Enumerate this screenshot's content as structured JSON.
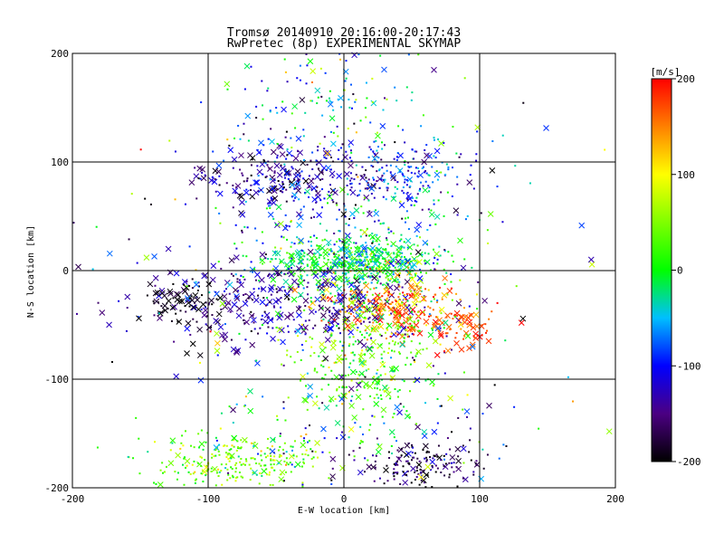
{
  "chart_data": {
    "type": "scatter",
    "title": "Tromsø 20140910 20:16:00-20:17:43",
    "subtitle": "RwPretec (8p) EXPERIMENTAL SKYMAP",
    "xlabel": "E-W location [km]",
    "ylabel": "N-S location [km]",
    "xlim": [
      -200,
      200
    ],
    "ylim": [
      -200,
      200
    ],
    "xticks": [
      "-200",
      "-100",
      "0",
      "100",
      "200"
    ],
    "yticks": [
      "200",
      "100",
      "0",
      "-100",
      "-200"
    ],
    "grid": true,
    "colorbar": {
      "label": "[m/s]",
      "range": [
        -200,
        200
      ],
      "ticks": [
        "200",
        "100",
        "0",
        "-100",
        "-200"
      ]
    },
    "seed": 20140910,
    "clusters": [
      {
        "cx": 0,
        "cy": 5,
        "sx": 35,
        "sy": 12,
        "n": 350,
        "v": 0,
        "vs": 35,
        "xfrac": 0.25
      },
      {
        "cx": 20,
        "cy": 12,
        "sx": 18,
        "sy": 10,
        "n": 200,
        "v": -20,
        "vs": 30,
        "xfrac": 0.2
      },
      {
        "cx": -40,
        "cy": 85,
        "sx": 35,
        "sy": 15,
        "n": 260,
        "v": -140,
        "vs": 40,
        "xfrac": 0.3
      },
      {
        "cx": 45,
        "cy": 90,
        "sx": 25,
        "sy": 15,
        "n": 160,
        "v": -90,
        "vs": 40,
        "xfrac": 0.1
      },
      {
        "cx": -40,
        "cy": -30,
        "sx": 60,
        "sy": 20,
        "n": 360,
        "v": -140,
        "vs": 25,
        "xfrac": 0.4
      },
      {
        "cx": -120,
        "cy": -30,
        "sx": 15,
        "sy": 15,
        "n": 70,
        "v": -195,
        "vs": 12,
        "xfrac": 0.6
      },
      {
        "cx": 35,
        "cy": -35,
        "sx": 28,
        "sy": 15,
        "n": 260,
        "v": 150,
        "vs": 40,
        "xfrac": 0.3
      },
      {
        "cx": 75,
        "cy": -55,
        "sx": 20,
        "sy": 15,
        "n": 70,
        "v": 170,
        "vs": 20,
        "xfrac": 0.6
      },
      {
        "cx": 20,
        "cy": -60,
        "sx": 30,
        "sy": 25,
        "n": 230,
        "v": 25,
        "vs": 45,
        "xfrac": 0.2
      },
      {
        "cx": 15,
        "cy": -100,
        "sx": 25,
        "sy": 15,
        "n": 120,
        "v": 30,
        "vs": 35,
        "xfrac": 0.15
      },
      {
        "cx": -80,
        "cy": -175,
        "sx": 30,
        "sy": 12,
        "n": 260,
        "v": 40,
        "vs": 35,
        "xfrac": 0.1
      },
      {
        "cx": 55,
        "cy": -180,
        "sx": 25,
        "sy": 12,
        "n": 160,
        "v": -170,
        "vs": 30,
        "xfrac": 0.2
      },
      {
        "cx": 0,
        "cy": -150,
        "sx": 50,
        "sy": 25,
        "n": 120,
        "v": -60,
        "vs": 90,
        "xfrac": 0.15
      },
      {
        "cx": -5,
        "cy": 150,
        "sx": 40,
        "sy": 30,
        "n": 130,
        "v": -40,
        "vs": 70,
        "xfrac": 0.15
      },
      {
        "cx": 0,
        "cy": 40,
        "sx": 45,
        "sy": 25,
        "n": 180,
        "v": -60,
        "vs": 80,
        "xfrac": 0.15
      },
      {
        "cx": 0,
        "cy": 0,
        "sx": 110,
        "sy": 110,
        "n": 220,
        "v": -40,
        "vs": 90,
        "xfrac": 0.4
      }
    ]
  }
}
